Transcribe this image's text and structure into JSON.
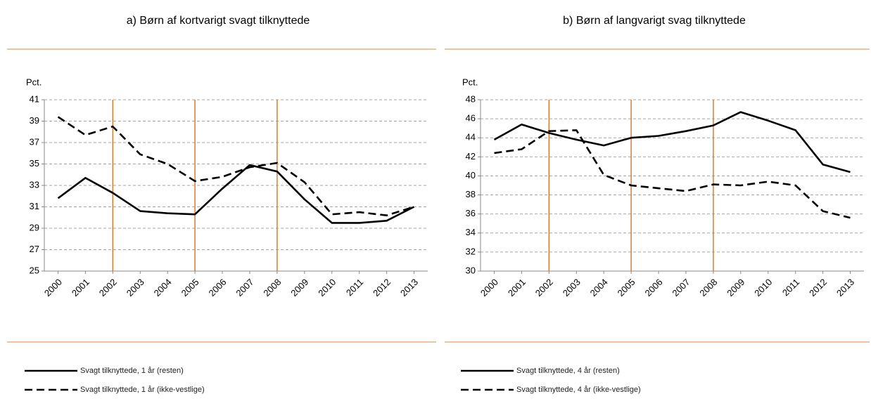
{
  "chart_data": [
    {
      "type": "line",
      "title": "a) Børn af kortvarigt svagt tilknyttede",
      "y_label": "Pct.",
      "categories": [
        "2000",
        "2001",
        "2002",
        "2003",
        "2004",
        "2005",
        "2006",
        "2007",
        "2008",
        "2009",
        "2010",
        "2011",
        "2012",
        "2013"
      ],
      "series": [
        {
          "name": "Svagt tilknyttede, 1 år (resten)",
          "color": "#000000",
          "dash": false,
          "values": [
            31.8,
            33.7,
            32.3,
            30.6,
            30.4,
            30.3,
            32.7,
            34.9,
            34.3,
            31.7,
            29.5,
            29.5,
            29.7,
            31.0
          ]
        },
        {
          "name": "Svagt tilknyttede, 1 år (ikke-vestlige)",
          "color": "#000000",
          "dash": true,
          "values": [
            39.4,
            37.7,
            38.5,
            35.9,
            35.0,
            33.4,
            33.8,
            34.7,
            35.1,
            33.3,
            30.3,
            30.5,
            30.2,
            31.0
          ]
        }
      ],
      "ylim": [
        25,
        41
      ],
      "yticks": [
        25,
        27,
        29,
        31,
        33,
        35,
        37,
        39,
        41
      ],
      "grid": true,
      "vlines": {
        "categories": [
          "2002",
          "2005",
          "2008"
        ],
        "color": "#e07a2e"
      },
      "legend": "bottom"
    },
    {
      "type": "line",
      "title": "b) Børn af langvarigt svag tilknyttede",
      "y_label": "Pct.",
      "categories": [
        "2000",
        "2001",
        "2002",
        "2003",
        "2004",
        "2005",
        "2006",
        "2007",
        "2008",
        "2009",
        "2010",
        "2011",
        "2012",
        "2013"
      ],
      "series": [
        {
          "name": "Svagt tilknyttede, 4 år (resten)",
          "color": "#000000",
          "dash": false,
          "values": [
            43.8,
            45.4,
            44.5,
            43.8,
            43.2,
            44.0,
            44.2,
            44.7,
            45.3,
            46.7,
            45.8,
            44.8,
            41.2,
            40.4
          ]
        },
        {
          "name": "Svagt tilknyttede, 4 år (ikke-vestlige)",
          "color": "#000000",
          "dash": true,
          "values": [
            42.4,
            42.8,
            44.7,
            44.8,
            40.1,
            39.0,
            38.7,
            38.4,
            39.1,
            39.0,
            39.4,
            39.0,
            36.3,
            35.6
          ]
        }
      ],
      "ylim": [
        30,
        48
      ],
      "yticks": [
        30,
        32,
        34,
        36,
        38,
        40,
        42,
        44,
        46,
        48
      ],
      "grid": true,
      "vlines": {
        "categories": [
          "2002",
          "2005",
          "2008"
        ],
        "color": "#e07a2e"
      },
      "legend": "bottom"
    }
  ]
}
